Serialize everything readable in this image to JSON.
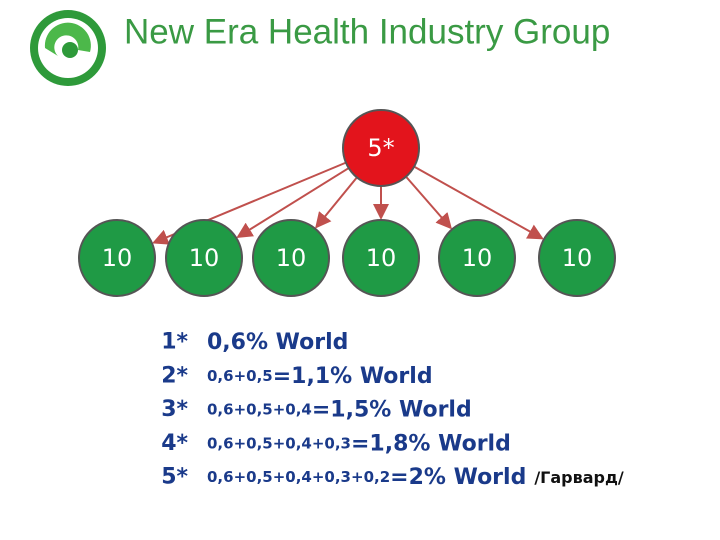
{
  "header": {
    "title": "New Era Health Industry Group"
  },
  "root": {
    "label": "5*"
  },
  "nodes": [
    {
      "label": "10"
    },
    {
      "label": "10"
    },
    {
      "label": "10"
    },
    {
      "label": "10"
    },
    {
      "label": "10"
    },
    {
      "label": "10"
    }
  ],
  "list": [
    {
      "marker": "1*",
      "result": "0,6% World"
    },
    {
      "marker": "2*",
      "formula": "0,6+0,5",
      "result": "=1,1% World"
    },
    {
      "marker": "3*",
      "formula": "0,6+0,5+0,4",
      "result": "=1,5% World"
    },
    {
      "marker": "4*",
      "formula": "0,6+0,5+0,4+0,3",
      "result": "=1,8% World"
    },
    {
      "marker": "5*",
      "formula": "0,6+0,5+0,4+0,3+0,2",
      "result": "=2% World",
      "note": "/Гарвард/"
    }
  ]
}
